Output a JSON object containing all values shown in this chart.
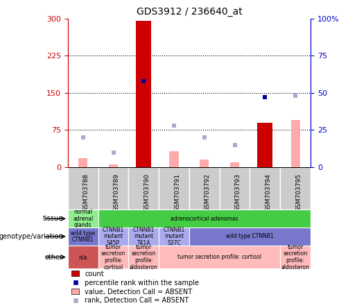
{
  "title": "GDS3912 / 236640_at",
  "samples": [
    "GSM703788",
    "GSM703789",
    "GSM703790",
    "GSM703791",
    "GSM703792",
    "GSM703793",
    "GSM703794",
    "GSM703795"
  ],
  "count_values": [
    0,
    0,
    295,
    0,
    0,
    0,
    90,
    0
  ],
  "value_absent": [
    18,
    5,
    0,
    32,
    15,
    10,
    0,
    95
  ],
  "rank_absent_pct": [
    20,
    10,
    0,
    28,
    20,
    15,
    0,
    48
  ],
  "percentile_present_pct": [
    null,
    null,
    58,
    null,
    null,
    null,
    47,
    null
  ],
  "ylim_left": [
    0,
    300
  ],
  "ylim_right": [
    0,
    100
  ],
  "yticks_left": [
    0,
    75,
    150,
    225,
    300
  ],
  "yticks_right": [
    0,
    25,
    50,
    75,
    100
  ],
  "hlines": [
    75,
    150,
    225
  ],
  "left_axis_color": "#cc0000",
  "right_axis_color": "#0000cc",
  "bar_color_count": "#cc0000",
  "bar_color_value_absent": "#ffaaaa",
  "bar_color_rank_absent": "#aaaacc",
  "dot_color_present": "#000099",
  "tissue_cells": [
    {
      "text": "normal\nadrenal\nglands",
      "color": "#90ee90",
      "span": 1
    },
    {
      "text": "adrenocortical adenomas",
      "color": "#44cc44",
      "span": 7
    }
  ],
  "geno_cells": [
    {
      "text": "wild type\nCTNNB1",
      "color": "#7777cc",
      "span": 1
    },
    {
      "text": "CTNNB1\nmutant\nS45P",
      "color": "#aaaaee",
      "span": 1
    },
    {
      "text": "CTNNB1\nmutant\nT41A",
      "color": "#aaaaee",
      "span": 1
    },
    {
      "text": "CTNNB1\nmutant\nS37C",
      "color": "#aaaaee",
      "span": 1
    },
    {
      "text": "wild type CTNNB1",
      "color": "#7777cc",
      "span": 4
    }
  ],
  "other_cells": [
    {
      "text": "n/a",
      "color": "#cc5555",
      "span": 1
    },
    {
      "text": "tumor\nsecretion\nprofile:\ncortisol",
      "color": "#ffbbbb",
      "span": 1
    },
    {
      "text": "tumor\nsecretion\nprofile:\naldosteron",
      "color": "#ffbbbb",
      "span": 1
    },
    {
      "text": "tumor secretion profile: cortisol",
      "color": "#ffbbbb",
      "span": 4
    },
    {
      "text": "tumor\nsecretion\nprofile:\naldosteron",
      "color": "#ffbbbb",
      "span": 1
    }
  ],
  "row_labels": [
    "tissue",
    "genotype/variation",
    "other"
  ],
  "legend_items": [
    {
      "type": "patch",
      "color": "#cc0000",
      "label": "count"
    },
    {
      "type": "marker",
      "color": "#000099",
      "label": "percentile rank within the sample"
    },
    {
      "type": "patch",
      "color": "#ffaaaa",
      "label": "value, Detection Call = ABSENT"
    },
    {
      "type": "marker",
      "color": "#aaaacc",
      "label": "rank, Detection Call = ABSENT"
    }
  ],
  "sample_box_color": "#cccccc",
  "fig_width": 5.15,
  "fig_height": 4.44
}
